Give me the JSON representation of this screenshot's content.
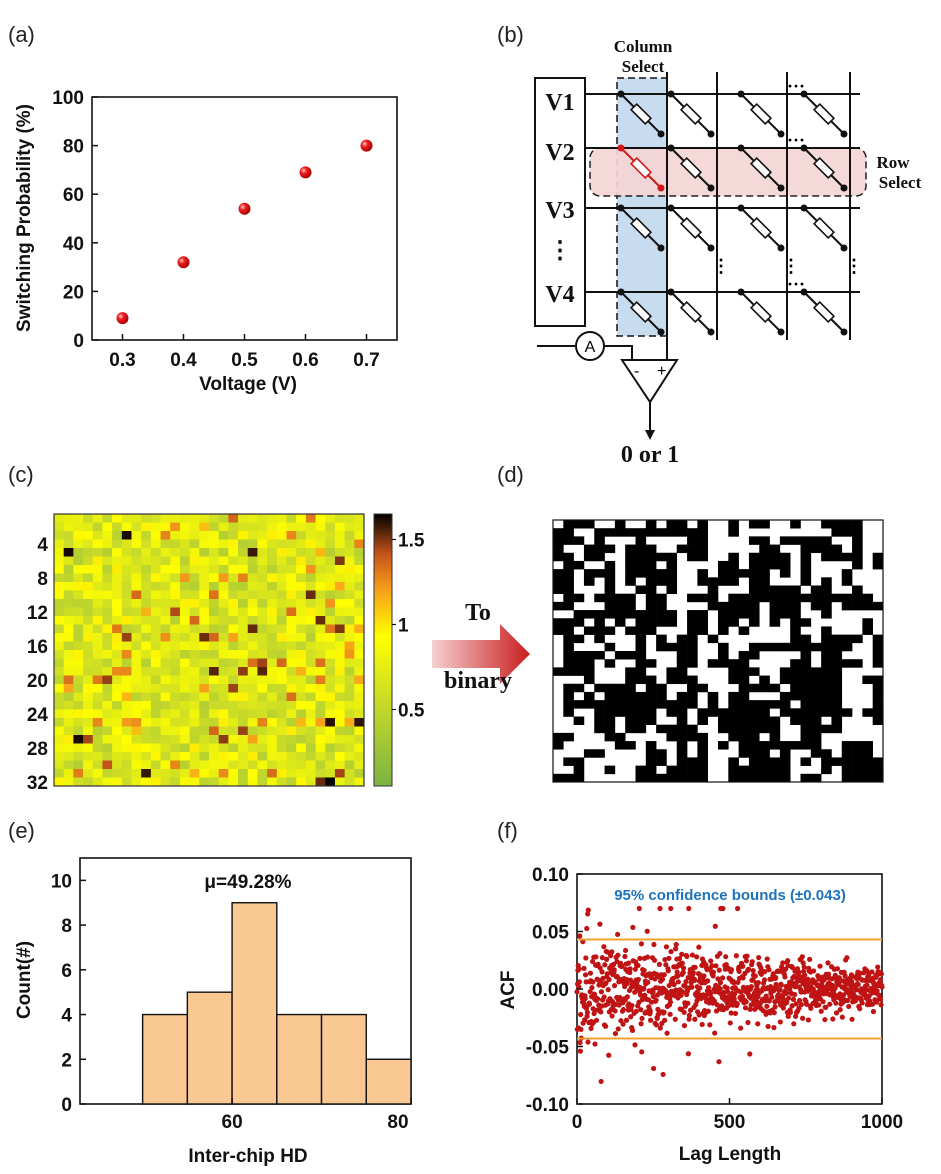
{
  "panels": {
    "a": "(a)",
    "b": "(b)",
    "c": "(c)",
    "d": "(d)",
    "e": "(e)",
    "f": "(f)"
  },
  "colors": {
    "marker_red": "#e01010",
    "bar_fill": "#fac893",
    "acf_points": "#c01414",
    "bounds": "#f0a030",
    "annotation_blue": "#1e73be",
    "col_highlight": "#c8dcef",
    "row_highlight": "#f5d5d5"
  },
  "diagram": {
    "column_select": "Column Select",
    "row_select": "Row Select",
    "voltages": [
      "V1",
      "V2",
      "V3",
      "V4"
    ],
    "ellipsis": "⋮",
    "ammeter": "A",
    "comp_minus": "-",
    "comp_plus": "+",
    "output": "0 or 1"
  },
  "arrow_label": {
    "line1": "To",
    "line2": "binary"
  },
  "heatmap": {
    "rows": 32,
    "cols": 32,
    "colorbar_ticks": [
      "1.5",
      "1",
      "0.5"
    ],
    "colorbar_range": [
      0.05,
      1.65
    ],
    "y_ticks": [
      "4",
      "8",
      "12",
      "16",
      "20",
      "24",
      "28",
      "32"
    ]
  },
  "binary_map": {
    "rows": 32,
    "cols": 32,
    "values": [
      "0",
      "1"
    ]
  },
  "chart_data": [
    {
      "type": "scatter",
      "panel": "(a)",
      "x": [
        0.3,
        0.4,
        0.5,
        0.6,
        0.7
      ],
      "y": [
        9,
        32,
        54,
        69,
        80
      ],
      "xlabel": "Voltage (V)",
      "ylabel": "Switching Probability (%)",
      "xlim": [
        0.25,
        0.75
      ],
      "ylim": [
        0,
        100
      ],
      "x_ticks": [
        "0.3",
        "0.4",
        "0.5",
        "0.6",
        "0.7"
      ],
      "y_ticks": [
        "0",
        "20",
        "40",
        "60",
        "80",
        "100"
      ]
    },
    {
      "type": "bar",
      "panel": "(e)",
      "bins": [
        [
          50,
          55
        ],
        [
          55,
          60
        ],
        [
          60,
          65
        ],
        [
          65,
          70
        ],
        [
          70,
          75
        ],
        [
          75,
          80
        ]
      ],
      "values": [
        4,
        5,
        9,
        4,
        4,
        2
      ],
      "annotation": "μ=49.28%",
      "xlabel": "Inter-chip HD",
      "ylabel": "Count(#)",
      "xlim": [
        43,
        80
      ],
      "ylim": [
        0,
        11
      ],
      "x_ticks": [
        "60",
        "80"
      ],
      "y_ticks": [
        "0",
        "2",
        "4",
        "6",
        "8",
        "10"
      ]
    },
    {
      "type": "scatter",
      "panel": "(f)",
      "x_range": [
        0,
        1000
      ],
      "n_points": 1000,
      "y_range": [
        -0.09,
        0.07
      ],
      "bounds": [
        -0.043,
        0.043
      ],
      "annotation": "95% confidence bounds (±0.043)",
      "xlabel": "Lag Length",
      "ylabel": "ACF",
      "xlim": [
        0,
        1000
      ],
      "ylim": [
        -0.1,
        0.1
      ],
      "x_ticks": [
        "0",
        "500",
        "1000"
      ],
      "y_ticks": [
        "0.10",
        "0.05",
        "0.00",
        "-0.05",
        "-0.10"
      ]
    }
  ]
}
